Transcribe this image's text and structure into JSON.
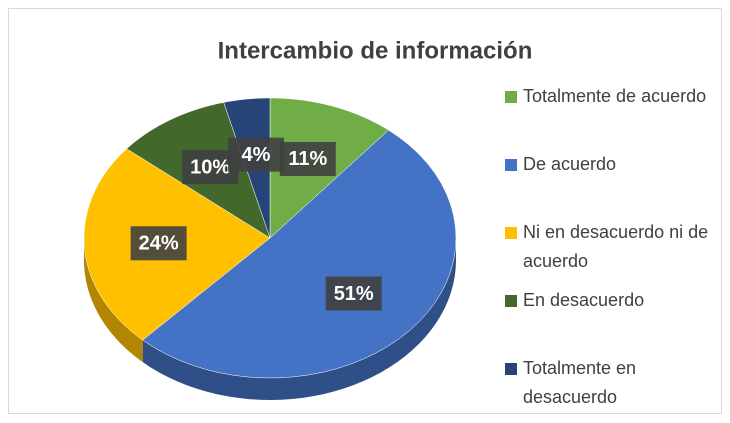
{
  "chart_data": {
    "type": "pie",
    "title": "Intercambio de información",
    "categories": [
      "Totalmente de acuerdo",
      "De acuerdo",
      "Ni en desacuerdo ni de acuerdo",
      "En desacuerdo",
      "Totalmente en desacuerdo"
    ],
    "values": [
      11,
      51,
      24,
      10,
      4
    ],
    "value_labels": [
      "11%",
      "51%",
      "24%",
      "10%",
      "4%"
    ],
    "colors": [
      "#70ad47",
      "#4472c4",
      "#ffc000",
      "#43682b",
      "#264478"
    ],
    "legend": "right"
  }
}
